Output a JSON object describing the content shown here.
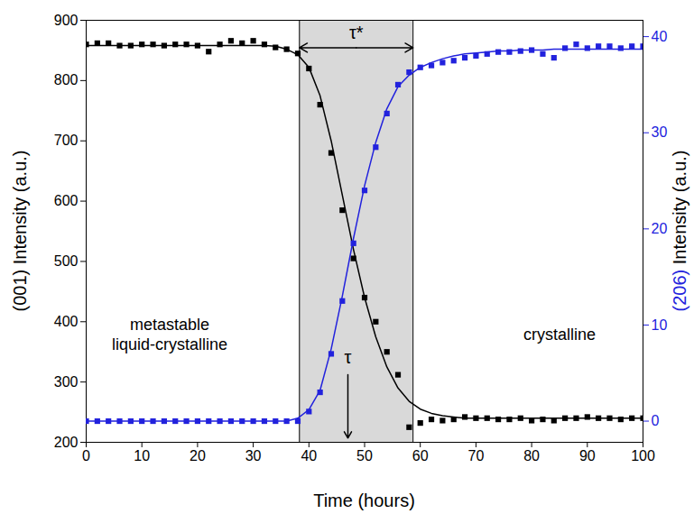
{
  "chart_data": {
    "type": "scatter",
    "xlabel": "Time (hours)",
    "ylabel": "(001) Intensity (a.u.)",
    "y2label": "(206) Intensity (a.u.)",
    "xlim": [
      0,
      100
    ],
    "xticks": [
      0,
      10,
      20,
      30,
      40,
      50,
      60,
      70,
      80,
      90,
      100
    ],
    "ylim": [
      200,
      900
    ],
    "yticks": [
      200,
      300,
      400,
      500,
      600,
      700,
      800,
      900
    ],
    "y2lim": [
      -2.2,
      41.7
    ],
    "y2ticks": [
      0,
      10,
      20,
      30,
      40
    ],
    "x": [
      0,
      2,
      4,
      6,
      8,
      10,
      12,
      14,
      16,
      18,
      20,
      22,
      24,
      26,
      28,
      30,
      32,
      34,
      36,
      38,
      40,
      42,
      44,
      46,
      48,
      50,
      52,
      54,
      56,
      58,
      60,
      62,
      64,
      66,
      68,
      70,
      72,
      74,
      76,
      78,
      80,
      82,
      84,
      86,
      88,
      90,
      92,
      94,
      96,
      98,
      100
    ],
    "series": [
      {
        "name": "(001)",
        "color": "#000000",
        "marker": "square",
        "axis": "y",
        "values": [
          860,
          862,
          862,
          858,
          858,
          860,
          860,
          858,
          860,
          860,
          858,
          848,
          860,
          866,
          862,
          866,
          860,
          855,
          852,
          845,
          820,
          760,
          680,
          585,
          505,
          440,
          400,
          350,
          312,
          225,
          232,
          238,
          236,
          238,
          242,
          240,
          240,
          238,
          238,
          240,
          236,
          238,
          236,
          240,
          240,
          242,
          240,
          240,
          238,
          240,
          240
        ],
        "fit": [
          858,
          858,
          858,
          858,
          858,
          858,
          858,
          858,
          858,
          858,
          858,
          858,
          858,
          858,
          858,
          858,
          858,
          857,
          852,
          843,
          822,
          775,
          700,
          610,
          520,
          440,
          375,
          325,
          290,
          268,
          255,
          248,
          244,
          242,
          240,
          240,
          240,
          240,
          240,
          240,
          240,
          240,
          240,
          240,
          240,
          240,
          240,
          240,
          240,
          240,
          240
        ]
      },
      {
        "name": "(206)",
        "color": "#2222dd",
        "marker": "square",
        "axis": "y2",
        "values": [
          0,
          0,
          0,
          0,
          0,
          0,
          0,
          0,
          0,
          0,
          0,
          0,
          0,
          0,
          0,
          0,
          0,
          0,
          0,
          0,
          1,
          3,
          7,
          12.5,
          18.5,
          24,
          28.5,
          32,
          35,
          36.3,
          36.8,
          37,
          37.3,
          37.5,
          37.8,
          38,
          38.2,
          38.4,
          38.4,
          38.5,
          38.6,
          38.2,
          37.8,
          38.8,
          39.2,
          38.8,
          39,
          39,
          38.8,
          39,
          39
        ],
        "fit": [
          0,
          0,
          0,
          0,
          0,
          0,
          0,
          0,
          0,
          0,
          0,
          0,
          0,
          0,
          0,
          0,
          0,
          0,
          0,
          0.3,
          1.2,
          3.2,
          7.5,
          13,
          19,
          24.5,
          29,
          32.5,
          34.8,
          36,
          36.8,
          37.3,
          37.7,
          38,
          38.2,
          38.3,
          38.4,
          38.5,
          38.5,
          38.6,
          38.6,
          38.6,
          38.7,
          38.7,
          38.7,
          38.7,
          38.7,
          38.7,
          38.7,
          38.7,
          38.7
        ]
      }
    ],
    "tau_star": {
      "text": "τ*",
      "x1": 38.3,
      "x2": 58.7
    },
    "tau": {
      "text": "τ",
      "x": 47
    },
    "phase_labels": [
      {
        "text": "metastable\nliquid-crystalline",
        "x": 15,
        "y": 380
      },
      {
        "text": "crystalline",
        "x": 85,
        "y": 380
      }
    ]
  }
}
